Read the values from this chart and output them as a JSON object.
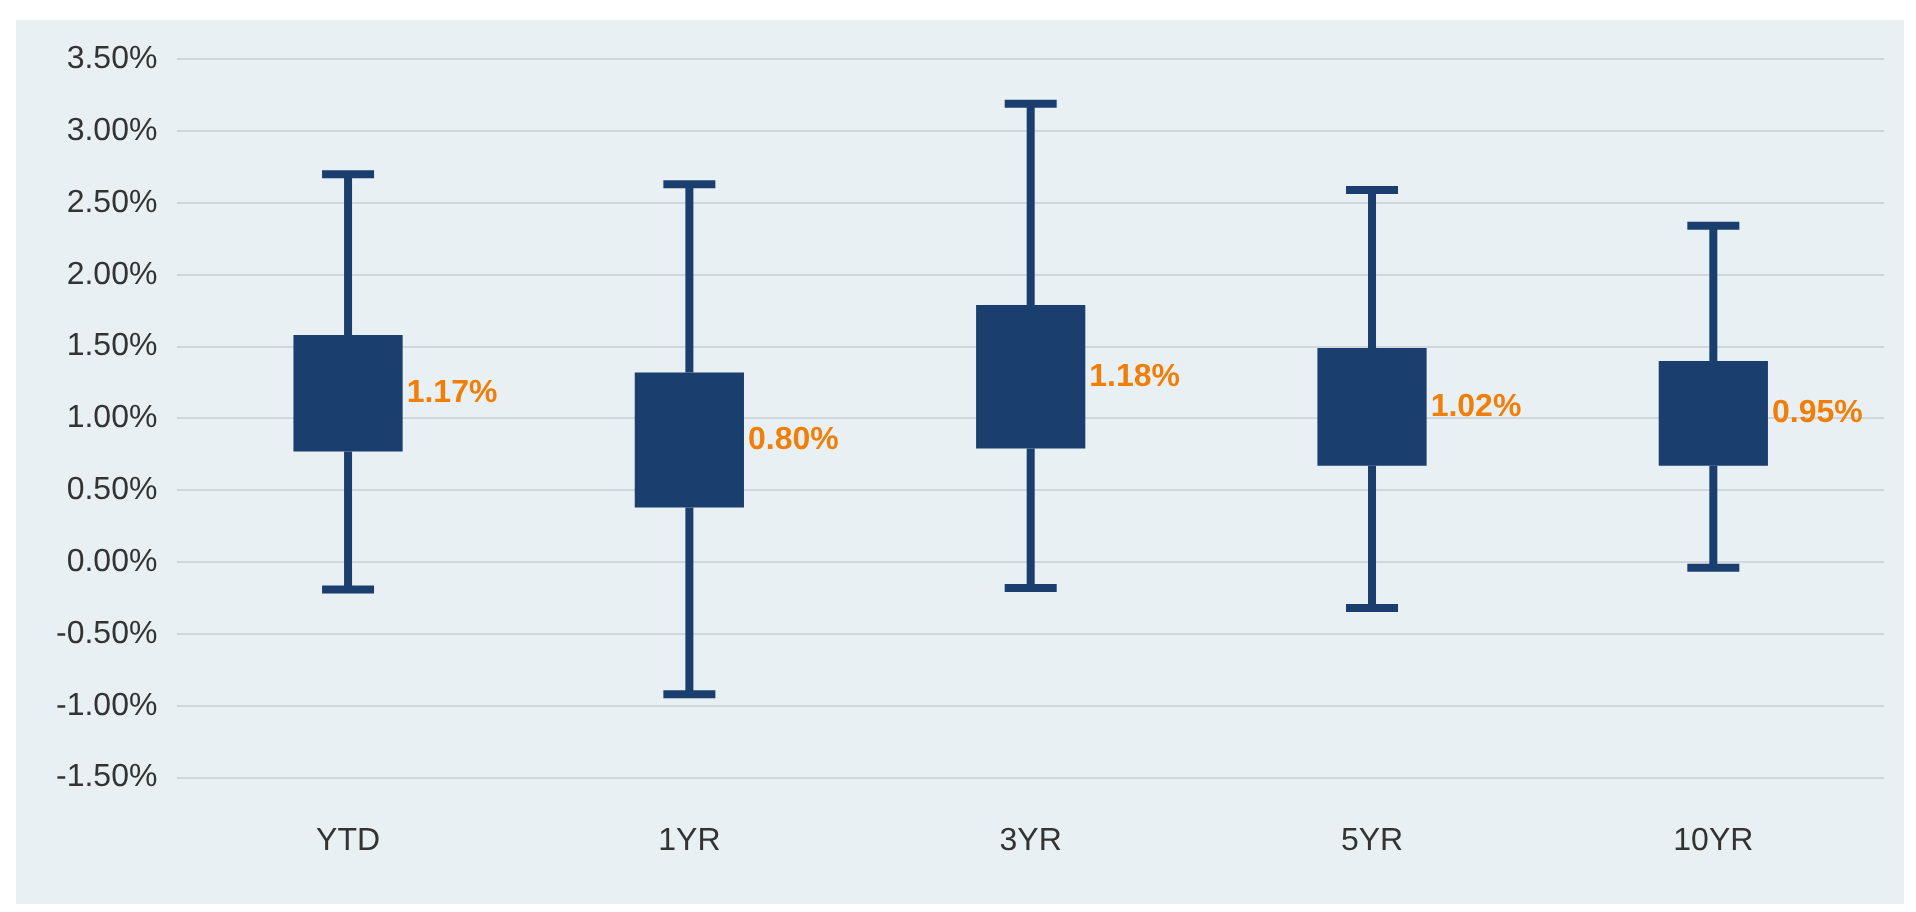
{
  "chart_data": {
    "type": "bar",
    "categories": [
      "YTD",
      "1YR",
      "3YR",
      "5YR",
      "10YR"
    ],
    "base": [
      0.77,
      0.38,
      0.79,
      0.67,
      0.67
    ],
    "values": [
      0.81,
      0.94,
      1.0,
      0.82,
      0.73
    ],
    "errors": [
      [
        -0.19,
        2.7
      ],
      [
        -0.92,
        2.63
      ],
      [
        -0.18,
        3.19
      ],
      [
        -0.32,
        2.59
      ],
      [
        -0.04,
        2.34
      ]
    ],
    "color": "#1a3f6f",
    "annotations": [
      "1.17%",
      "0.80%",
      "1.18%",
      "1.02%",
      "0.95%"
    ],
    "ylim": [
      -1.5,
      3.5
    ],
    "yticks": [
      {
        "value": -1.5,
        "label": "-1.50%"
      },
      {
        "value": -1,
        "label": "-1.00%"
      },
      {
        "value": -0.5,
        "label": "-0.50%"
      },
      {
        "value": 0,
        "label": "0.00%"
      },
      {
        "value": 0.5,
        "label": "0.50%"
      },
      {
        "value": 1,
        "label": "1.00%"
      },
      {
        "value": 1.5,
        "label": "1.50%"
      },
      {
        "value": 2,
        "label": "2.00%"
      },
      {
        "value": 2.5,
        "label": "2.50%"
      },
      {
        "value": 3,
        "label": "3.00%"
      },
      {
        "value": 3.5,
        "label": "3.50%"
      }
    ],
    "grid": "y",
    "legend": false
  }
}
